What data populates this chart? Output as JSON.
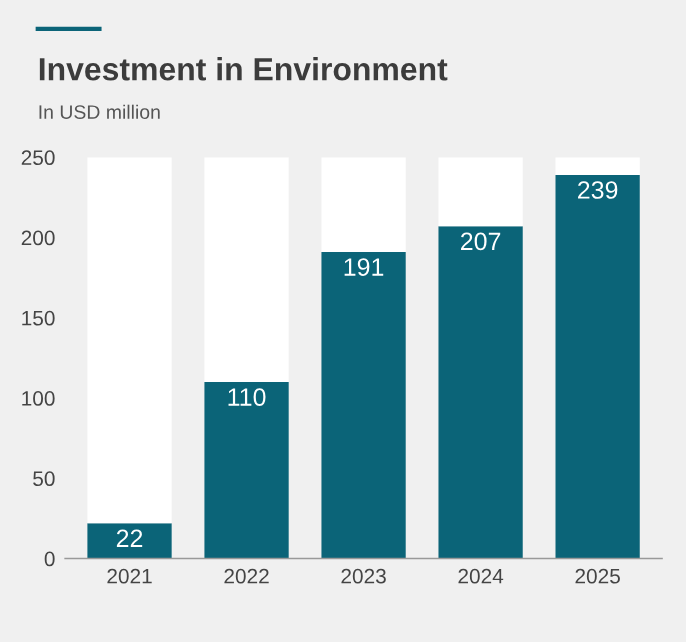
{
  "chart_data": {
    "type": "bar",
    "title": "Investment in Environment",
    "subtitle": "In USD million",
    "categories": [
      "2021",
      "2022",
      "2023",
      "2024",
      "2025"
    ],
    "stacked": true,
    "series": [
      {
        "color": "#0b6478",
        "values": [
          22,
          110,
          191,
          207,
          239
        ],
        "value_labels": [
          "22",
          "110",
          "191",
          "207",
          "239"
        ]
      },
      {
        "color": "#ffffff",
        "values": [
          228,
          140,
          59,
          43,
          11
        ]
      }
    ],
    "ylim": [
      0,
      250
    ],
    "yticks": [
      0,
      50,
      100,
      150,
      200,
      250
    ],
    "grid": false,
    "legend": false
  }
}
